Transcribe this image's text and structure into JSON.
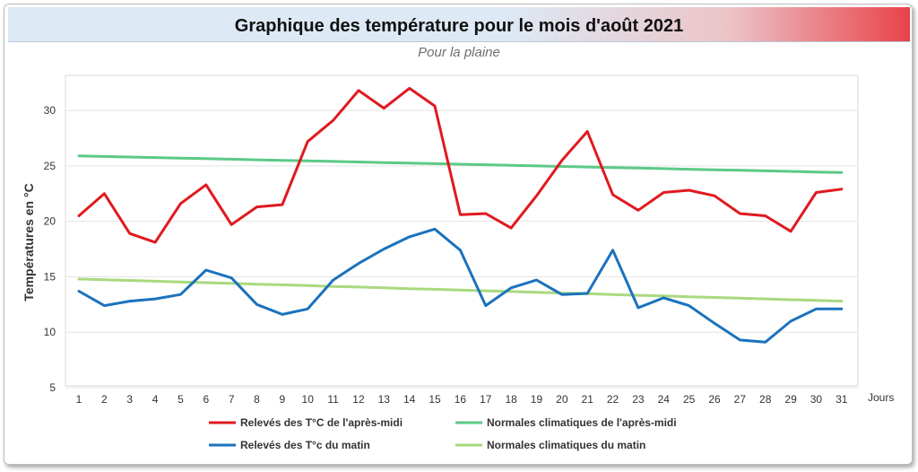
{
  "chart_data": {
    "type": "line",
    "title": "Graphique des température pour le mois d'août 2021",
    "subtitle": "Pour la plaine",
    "ylabel": "Températures en °C",
    "xunit": "Jours",
    "ylim": [
      5,
      33
    ],
    "yticks": [
      5,
      10,
      15,
      20,
      25,
      30
    ],
    "x": [
      1,
      2,
      3,
      4,
      5,
      6,
      7,
      8,
      9,
      10,
      11,
      12,
      13,
      14,
      15,
      16,
      17,
      18,
      19,
      20,
      21,
      22,
      23,
      24,
      25,
      26,
      27,
      28,
      29,
      30,
      31
    ],
    "grid": "horizontal",
    "legend_position": "bottom",
    "series": [
      {
        "name": "Relevés des T°C de l'après-midi",
        "color": "#e0191f",
        "values": [
          20.5,
          22.5,
          18.9,
          18.1,
          21.6,
          23.3,
          19.7,
          21.3,
          21.5,
          27.2,
          29.1,
          31.8,
          30.2,
          32.0,
          30.4,
          20.6,
          20.7,
          19.4,
          22.3,
          25.5,
          28.1,
          22.4,
          21.0,
          22.6,
          22.8,
          22.3,
          20.7,
          20.5,
          19.1,
          22.6,
          22.9
        ]
      },
      {
        "name": "Normales climatiques de l'après-midi",
        "color": "#5cc987",
        "values": [
          25.9,
          25.85,
          25.8,
          25.75,
          25.7,
          25.65,
          25.6,
          25.55,
          25.5,
          25.45,
          25.4,
          25.35,
          25.3,
          25.25,
          25.2,
          25.15,
          25.1,
          25.05,
          25.0,
          24.95,
          24.9,
          24.85,
          24.8,
          24.75,
          24.7,
          24.65,
          24.6,
          24.55,
          24.5,
          24.45,
          24.4
        ]
      },
      {
        "name": "Relevés des T°c du matin",
        "color": "#1b72bd",
        "values": [
          13.7,
          12.4,
          12.8,
          13.0,
          13.4,
          15.6,
          14.9,
          12.5,
          11.6,
          12.1,
          14.7,
          16.2,
          17.5,
          18.6,
          19.3,
          17.4,
          12.4,
          14.0,
          14.7,
          13.4,
          13.5,
          17.4,
          12.2,
          13.1,
          12.4,
          10.8,
          9.3,
          9.1,
          11.0,
          12.1,
          12.1
        ]
      },
      {
        "name": "Normales climatiques du matin",
        "color": "#a9d97f",
        "values": [
          14.8,
          14.73,
          14.67,
          14.6,
          14.53,
          14.47,
          14.4,
          14.33,
          14.27,
          14.2,
          14.13,
          14.07,
          14.0,
          13.93,
          13.87,
          13.8,
          13.73,
          13.67,
          13.6,
          13.53,
          13.47,
          13.4,
          13.33,
          13.27,
          13.2,
          13.13,
          13.07,
          13.0,
          12.93,
          12.87,
          12.8
        ]
      }
    ]
  }
}
